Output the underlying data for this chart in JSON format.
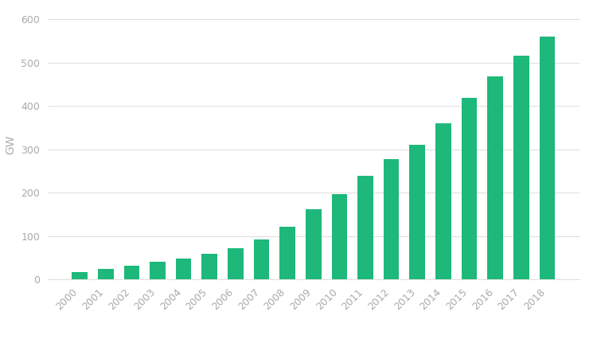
{
  "categories": [
    "2000",
    "2001",
    "2002",
    "2003",
    "2004",
    "2005",
    "2006",
    "2007",
    "2008",
    "2009",
    "2010",
    "2011",
    "2012",
    "2013",
    "2014",
    "2015",
    "2016",
    "2017",
    "2018"
  ],
  "values": [
    17,
    24,
    32,
    40,
    48,
    58,
    72,
    92,
    122,
    162,
    197,
    238,
    278,
    311,
    360,
    418,
    468,
    516,
    561
  ],
  "bar_color": "#1db87a",
  "ylabel": "GW",
  "ylim": [
    0,
    620
  ],
  "yticks": [
    0,
    100,
    200,
    300,
    400,
    500,
    600
  ],
  "background_color": "#ffffff",
  "bar_width": 0.6,
  "grid_color": "#e0e0e0",
  "label_color": "#aaaaaa",
  "ylabel_color": "#aaaaaa",
  "tick_fontsize": 9,
  "ylabel_fontsize": 10
}
